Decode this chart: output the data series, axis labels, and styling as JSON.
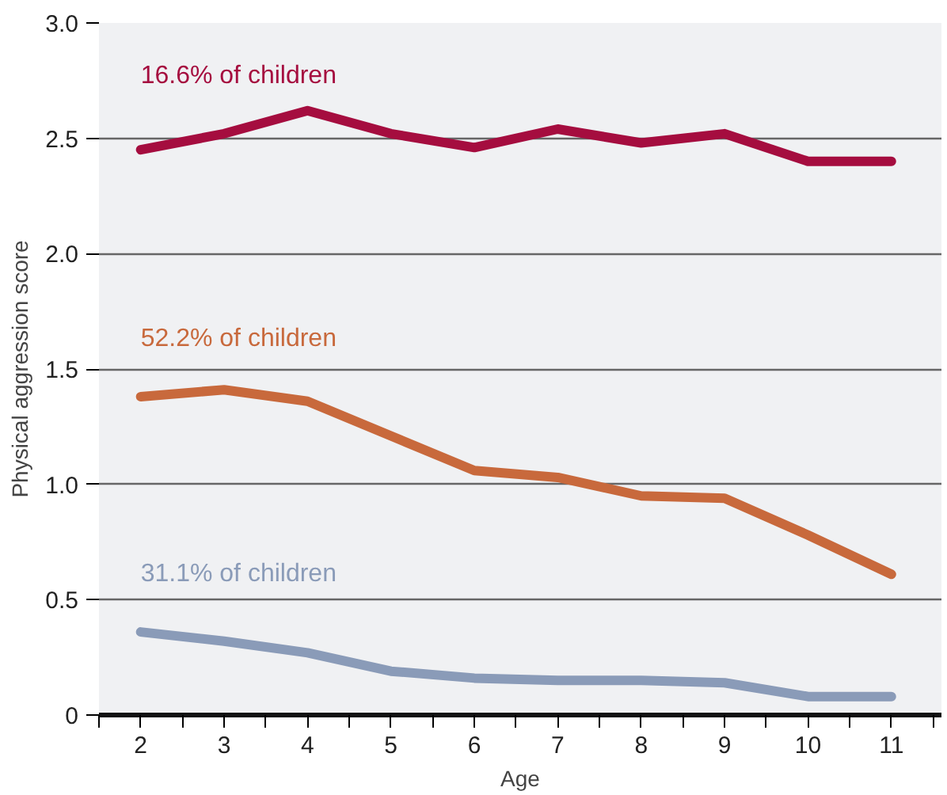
{
  "chart_data": {
    "type": "line",
    "xlabel": "Age",
    "ylabel": "Physical aggression score",
    "x": [
      2,
      3,
      4,
      5,
      6,
      7,
      8,
      9,
      10,
      11
    ],
    "series": [
      {
        "name": "16.6% of children",
        "color": "#a50d3f",
        "values": [
          2.45,
          2.52,
          2.62,
          2.52,
          2.46,
          2.54,
          2.48,
          2.52,
          2.4,
          2.4
        ]
      },
      {
        "name": "52.2% of children",
        "color": "#c8693c",
        "values": [
          1.38,
          1.41,
          1.36,
          1.21,
          1.06,
          1.03,
          0.95,
          0.94,
          0.78,
          0.61
        ]
      },
      {
        "name": "31.1% of children",
        "color": "#8a9bb8",
        "values": [
          0.36,
          0.32,
          0.27,
          0.19,
          0.16,
          0.15,
          0.15,
          0.14,
          0.08,
          0.08
        ]
      }
    ],
    "xlim": [
      1.5,
      11.6
    ],
    "xticks": [
      {
        "value": 1.5,
        "label": null
      },
      2,
      {
        "value": 2.5,
        "label": null
      },
      3,
      {
        "value": 3.5,
        "label": null
      },
      4,
      {
        "value": 4.5,
        "label": null
      },
      5,
      {
        "value": 5.5,
        "label": null
      },
      6,
      {
        "value": 6.5,
        "label": null
      },
      7,
      {
        "value": 7.5,
        "label": null
      },
      8,
      {
        "value": 8.5,
        "label": null
      },
      9,
      {
        "value": 9.5,
        "label": null
      },
      10,
      {
        "value": 10.5,
        "label": null
      },
      11,
      {
        "value": 11.5,
        "label": null
      }
    ],
    "ylim": [
      0,
      3
    ],
    "yticks": [
      0,
      {
        "value": 0.5,
        "label": "0.5"
      },
      {
        "value": 1,
        "label": "1.0"
      },
      {
        "value": 1.5,
        "label": "1.5"
      },
      {
        "value": 2,
        "label": "2.0"
      },
      {
        "value": 2.5,
        "label": "2.5"
      },
      {
        "value": 3,
        "label": "3.0"
      }
    ],
    "grid": "y",
    "marker": "none",
    "line_style": "solid"
  }
}
